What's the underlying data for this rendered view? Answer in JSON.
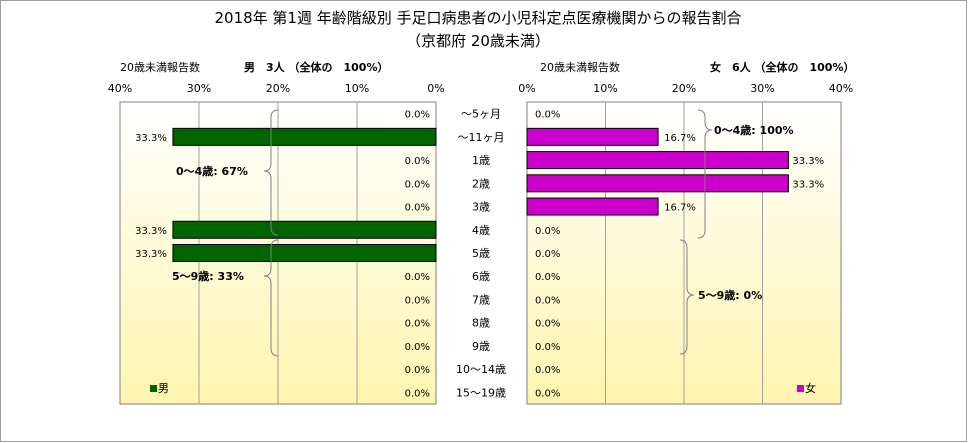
{
  "title": {
    "line1": "2018年 第1週 年齢階級別 手足口病患者の小児科定点医療機関からの報告割合",
    "line2": "（京都府 20歳未満）"
  },
  "colors": {
    "male": "#006400",
    "female": "#CC00CC",
    "plot_top": "#FFFFFF",
    "plot_bottom": "#FFF5B0"
  },
  "age_categories": [
    "～5ヶ月",
    "～11ヶ月",
    "1歳",
    "2歳",
    "3歳",
    "4歳",
    "5歳",
    "6歳",
    "7歳",
    "8歳",
    "9歳",
    "10～14歳",
    "15～19歳"
  ],
  "male_panel": {
    "header_left": "20歳未満報告数",
    "header_right": "男　3人 （全体の　100%）",
    "legend": "男",
    "brace_labels": [
      "0～4歳: 67%",
      "5～9歳: 33%"
    ]
  },
  "female_panel": {
    "header_left": "20歳未満報告数",
    "header_right": "女　6人 （全体の　100%）",
    "legend": "女",
    "brace_labels": [
      "0～4歳: 100%",
      "5～9歳: 0%"
    ]
  },
  "chart_data": [
    {
      "type": "bar",
      "orientation": "horizontal-reversed",
      "categories": [
        "～5ヶ月",
        "～11ヶ月",
        "1歳",
        "2歳",
        "3歳",
        "4歳",
        "5歳",
        "6歳",
        "7歳",
        "8歳",
        "9歳",
        "10～14歳",
        "15～19歳"
      ],
      "series": [
        {
          "name": "男",
          "values": [
            0.0,
            33.3,
            0.0,
            0.0,
            0.0,
            33.3,
            33.3,
            0.0,
            0.0,
            0.0,
            0.0,
            0.0,
            0.0
          ]
        }
      ],
      "value_labels": [
        "0.0%",
        "33.3%",
        "0.0%",
        "0.0%",
        "0.0%",
        "33.3%",
        "33.3%",
        "0.0%",
        "0.0%",
        "0.0%",
        "0.0%",
        "0.0%",
        "0.0%"
      ],
      "xlim": [
        0,
        40
      ],
      "xticks": [
        "40%",
        "30%",
        "20%",
        "10%",
        "0%"
      ],
      "legend_position": "bottom-left"
    },
    {
      "type": "bar",
      "orientation": "horizontal",
      "categories": [
        "～5ヶ月",
        "～11ヶ月",
        "1歳",
        "2歳",
        "3歳",
        "4歳",
        "5歳",
        "6歳",
        "7歳",
        "8歳",
        "9歳",
        "10～14歳",
        "15～19歳"
      ],
      "series": [
        {
          "name": "女",
          "values": [
            0.0,
            16.7,
            33.3,
            33.3,
            16.7,
            0.0,
            0.0,
            0.0,
            0.0,
            0.0,
            0.0,
            0.0,
            0.0
          ]
        }
      ],
      "value_labels": [
        "0.0%",
        "16.7%",
        "33.3%",
        "33.3%",
        "16.7%",
        "0.0%",
        "0.0%",
        "0.0%",
        "0.0%",
        "0.0%",
        "0.0%",
        "0.0%",
        "0.0%"
      ],
      "xlim": [
        0,
        40
      ],
      "xticks": [
        "0%",
        "10%",
        "20%",
        "30%",
        "40%"
      ],
      "legend_position": "bottom-right"
    }
  ]
}
